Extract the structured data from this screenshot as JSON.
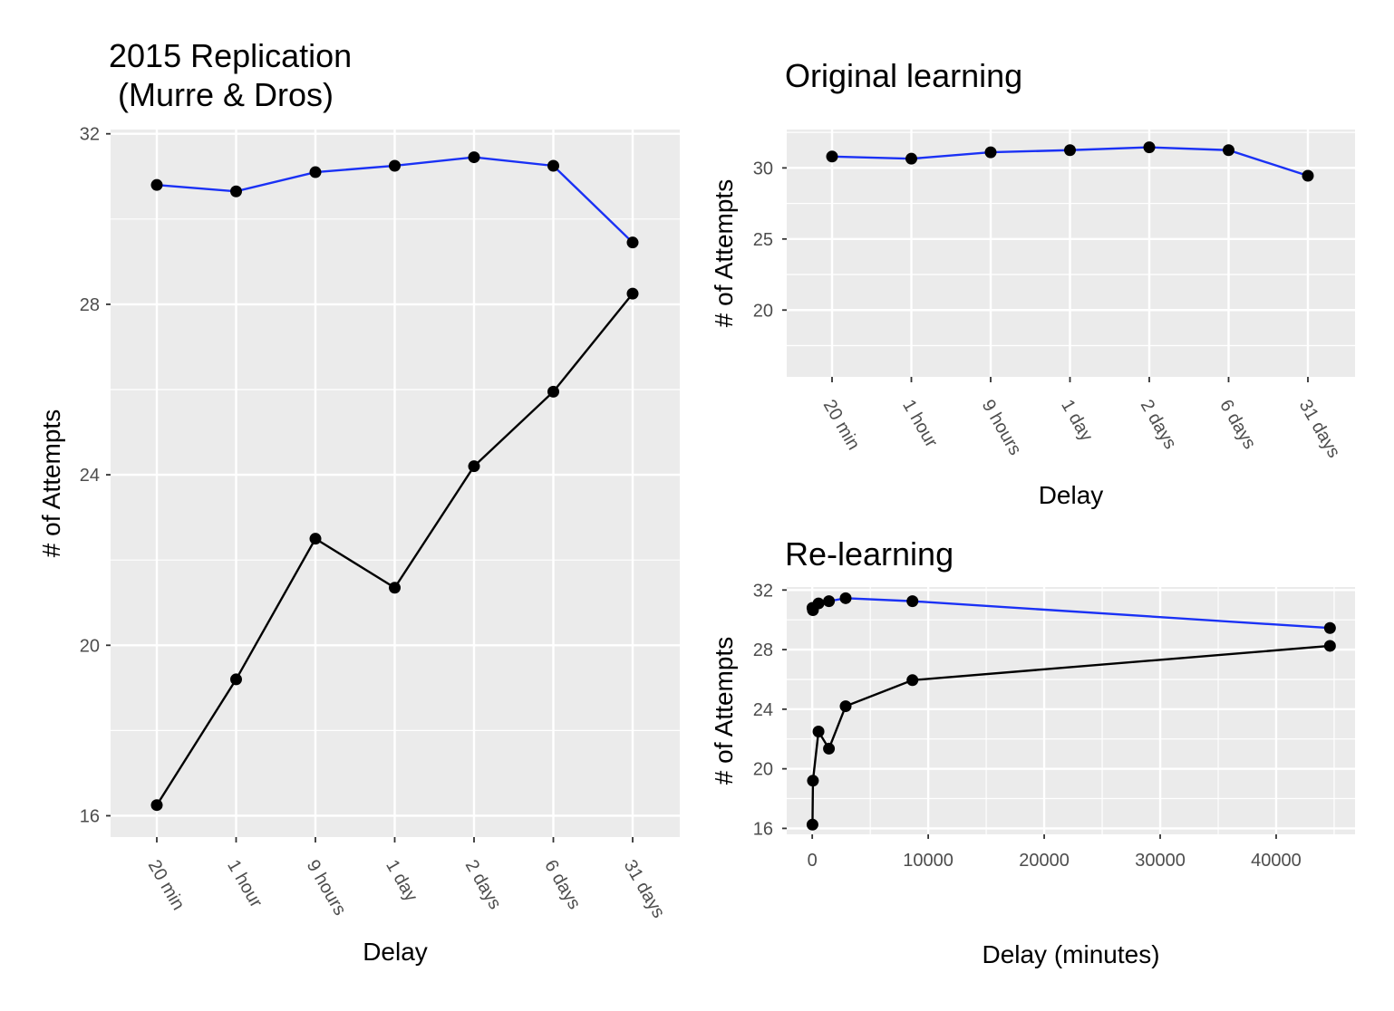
{
  "chart_data": [
    {
      "id": "left",
      "type": "line",
      "title": "2015 Replication\n(Murre & Dros)",
      "xlabel": "Delay",
      "ylabel": "# of Attempts",
      "categories": [
        "20 min",
        "1 hour",
        "9 hours",
        "1 day",
        "2 days",
        "6 days",
        "31 days"
      ],
      "ylim": [
        15.5,
        32.1
      ],
      "yticks": [
        16,
        20,
        24,
        28,
        32
      ],
      "grid": true,
      "series": [
        {
          "color": "#1a31f5",
          "values": [
            30.8,
            30.65,
            31.1,
            31.25,
            31.45,
            31.25,
            29.45
          ]
        },
        {
          "color": "#000000",
          "values": [
            16.25,
            19.2,
            22.5,
            21.35,
            24.2,
            25.95,
            28.25
          ]
        }
      ]
    },
    {
      "id": "top-right",
      "type": "line",
      "title": "Original learning",
      "xlabel": "Delay",
      "ylabel": "# of Attempts",
      "categories": [
        "20 min",
        "1 hour",
        "9 hours",
        "1 day",
        "2 days",
        "6 days",
        "31 days"
      ],
      "ylim": [
        15.3,
        32.7
      ],
      "yticks": [
        20,
        25,
        30
      ],
      "grid": true,
      "series": [
        {
          "color": "#1a31f5",
          "values": [
            30.8,
            30.65,
            31.1,
            31.25,
            31.45,
            31.25,
            29.45
          ]
        }
      ]
    },
    {
      "id": "bottom-right",
      "type": "line",
      "title": "Re-learning",
      "xlabel": "Delay (minutes)",
      "ylabel": "# of Attempts",
      "xlim": [
        -2200,
        46800
      ],
      "xticks": [
        0,
        10000,
        20000,
        30000,
        40000
      ],
      "ylim": [
        15.6,
        32.2
      ],
      "yticks": [
        16,
        20,
        24,
        28,
        32
      ],
      "grid": true,
      "series": [
        {
          "color": "#1a31f5",
          "x": [
            20,
            60,
            540,
            1440,
            2880,
            8640,
            44640
          ],
          "y": [
            30.8,
            30.65,
            31.1,
            31.25,
            31.45,
            31.25,
            29.45
          ]
        },
        {
          "color": "#000000",
          "x": [
            20,
            60,
            540,
            1440,
            2880,
            8640,
            44640
          ],
          "y": [
            16.25,
            19.2,
            22.5,
            21.35,
            24.2,
            25.95,
            28.25
          ]
        }
      ]
    }
  ]
}
